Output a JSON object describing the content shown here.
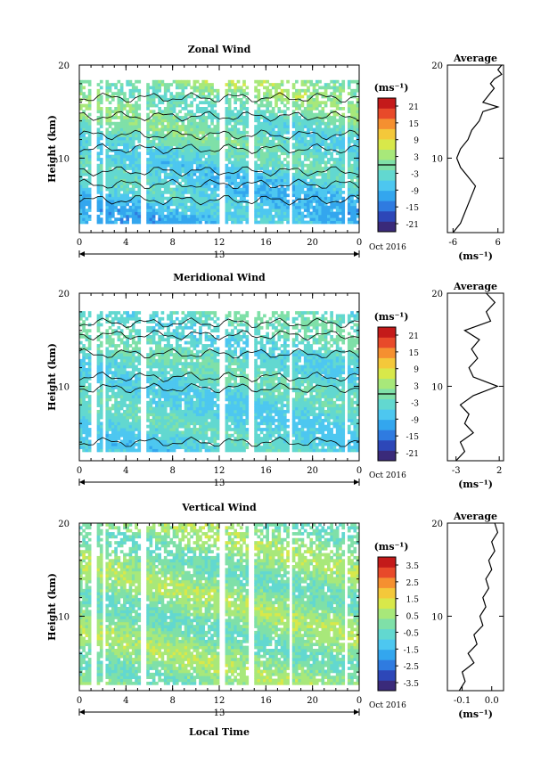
{
  "chart_data": [
    {
      "type": "heatmap",
      "title": "Zonal Wind",
      "ylabel": "Height (km)",
      "xlabel": "",
      "x_ticks": [
        "0",
        "4",
        "8",
        "12",
        "16",
        "20",
        "0"
      ],
      "y_ticks": [
        "10",
        "20"
      ],
      "date_label": "13",
      "date_suffix": "Oct 2016",
      "xlim": [
        0,
        24
      ],
      "ylim": [
        2,
        20
      ],
      "colorbar": {
        "unit": "(ms⁻¹)",
        "ticks": [
          "21",
          "15",
          "9",
          "3",
          "-3",
          "-9",
          "-15",
          "-21"
        ],
        "range": [
          -24,
          24
        ],
        "zero_line": 0
      },
      "average_profile": {
        "title": "Average",
        "unit": "(ms⁻¹)",
        "x_ticks": [
          "-6",
          "6"
        ],
        "xlim": [
          -7.5,
          7.5
        ],
        "y_ticks": [
          "10",
          "20"
        ],
        "heights": [
          2,
          3,
          4,
          5,
          6,
          7,
          8,
          9,
          10,
          11,
          12,
          13,
          14,
          15,
          15.5,
          16,
          16.5,
          17,
          17.5,
          18,
          18.5,
          19,
          19.5,
          20
        ],
        "values": [
          -6,
          -4,
          -3,
          -2,
          -1,
          0,
          -2,
          -4,
          -5,
          -4,
          -2,
          -1,
          1,
          2,
          6,
          2,
          3,
          4,
          5,
          4,
          5,
          7,
          6,
          7
        ]
      },
      "field": {
        "mean": -4,
        "shear": 0.7,
        "amp": 5,
        "base": 3,
        "top": 18.5
      }
    },
    {
      "type": "heatmap",
      "title": "Meridional Wind",
      "ylabel": "Height (km)",
      "xlabel": "",
      "x_ticks": [
        "0",
        "4",
        "8",
        "12",
        "16",
        "20",
        "0"
      ],
      "y_ticks": [
        "10",
        "20"
      ],
      "date_label": "13",
      "date_suffix": "Oct 2016",
      "xlim": [
        0,
        24
      ],
      "ylim": [
        2,
        20
      ],
      "colorbar": {
        "unit": "(ms⁻¹)",
        "ticks": [
          "21",
          "15",
          "9",
          "3",
          "-3",
          "-9",
          "-15",
          "-21"
        ],
        "range": [
          -24,
          24
        ],
        "zero_line": 0
      },
      "average_profile": {
        "title": "Average",
        "unit": "(ms⁻¹)",
        "x_ticks": [
          "-3",
          "2"
        ],
        "xlim": [
          -4,
          2.5
        ],
        "y_ticks": [
          "10",
          "20"
        ],
        "heights": [
          2,
          3,
          4,
          5,
          6,
          7,
          8,
          9,
          10,
          11,
          12,
          13,
          14,
          15,
          16,
          17,
          18,
          19,
          20
        ],
        "values": [
          -3,
          -2,
          -2.5,
          -1,
          -2,
          -1.5,
          -2.5,
          -1,
          1.8,
          -1,
          -1.5,
          -0.5,
          -1.2,
          -0.3,
          -2,
          1,
          0.5,
          1.5,
          0.5
        ]
      },
      "field": {
        "mean": -4,
        "shear": 0.2,
        "amp": 4,
        "base": 3,
        "top": 18
      }
    },
    {
      "type": "heatmap",
      "title": "Vertical Wind",
      "ylabel": "Height (km)",
      "xlabel": "Local Time",
      "x_ticks": [
        "0",
        "4",
        "8",
        "12",
        "16",
        "20",
        "0"
      ],
      "y_ticks": [
        "10",
        "20"
      ],
      "date_label": "13",
      "date_suffix": "Oct 2016",
      "xlim": [
        0,
        24
      ],
      "ylim": [
        2,
        20
      ],
      "colorbar": {
        "unit": "(ms⁻¹)",
        "ticks": [
          "3.5",
          "2.5",
          "1.5",
          "0.5",
          "-0.5",
          "-1.5",
          "-2.5",
          "-3.5"
        ],
        "range": [
          -4,
          4
        ],
        "zero_line": null
      },
      "average_profile": {
        "title": "Average",
        "unit": "(ms⁻¹)",
        "x_ticks": [
          "-0.1",
          "0.0"
        ],
        "xlim": [
          -0.15,
          0.04
        ],
        "y_ticks": [
          "10",
          "20"
        ],
        "heights": [
          2,
          3,
          4,
          5,
          6,
          7,
          8,
          9,
          10,
          11,
          12,
          13,
          14,
          15,
          16,
          17,
          18,
          19,
          20
        ],
        "values": [
          -0.11,
          -0.09,
          -0.1,
          -0.06,
          -0.08,
          -0.05,
          -0.06,
          -0.03,
          -0.04,
          -0.02,
          -0.03,
          -0.01,
          -0.02,
          0.0,
          -0.01,
          0.01,
          0.0,
          0.02,
          0.01
        ]
      },
      "field": {
        "mean": 0.2,
        "shear": 0.0,
        "amp": 0.9,
        "base": 2.5,
        "top": 20
      }
    }
  ],
  "colors": {
    "palette": [
      "#3a2a7a",
      "#2d47b8",
      "#2f7be0",
      "#33a6ee",
      "#4dc7f0",
      "#62d8d0",
      "#7fe0a8",
      "#a8e87a",
      "#d8e84a",
      "#f4c83a",
      "#f59030",
      "#e84a2a",
      "#c41a1a"
    ],
    "contour": "#000000",
    "axis": "#000000"
  }
}
